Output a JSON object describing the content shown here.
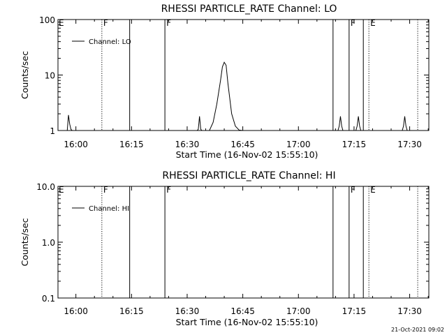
{
  "footer": {
    "timestamp": "21-Oct-2021 09:02"
  },
  "chart_data": [
    {
      "type": "line",
      "title": "RHESSI PARTICLE_RATE Channel: LO",
      "xlabel": "Start Time (16-Nov-02 15:55:10)",
      "ylabel": "Counts/sec",
      "yscale": "log",
      "ylim": [
        1,
        100
      ],
      "xlim": [
        "15:55:10",
        "17:35:10"
      ],
      "x_ticks": [
        "16:00",
        "16:15",
        "16:30",
        "16:45",
        "17:00",
        "17:15",
        "17:30"
      ],
      "y_ticks": [
        "1",
        "10",
        "100"
      ],
      "legend": {
        "position": "top-left",
        "entries": [
          "Channel: LO"
        ]
      },
      "series": [
        {
          "name": "Channel: LO",
          "x": [
            "15:55:10",
            "15:57:40",
            "15:58:00",
            "15:58:20",
            "15:58:40",
            "15:59:00",
            "15:59:20",
            "16:32:40",
            "16:33:00",
            "16:33:20",
            "16:33:40",
            "16:34:00",
            "16:36:00",
            "16:37:00",
            "16:38:00",
            "16:39:00",
            "16:39:30",
            "16:40:00",
            "16:40:30",
            "16:41:00",
            "16:42:00",
            "16:43:00",
            "16:44:00",
            "16:45:00",
            "17:10:40",
            "17:11:00",
            "17:11:20",
            "17:11:40",
            "17:12:00",
            "17:15:30",
            "17:15:50",
            "17:16:10",
            "17:16:30",
            "17:16:50",
            "17:28:00",
            "17:28:20",
            "17:28:40",
            "17:29:00",
            "17:29:20",
            "17:35:10"
          ],
          "y": [
            1,
            1,
            1.9,
            1.3,
            1.05,
            1,
            1,
            1,
            1.05,
            1.8,
            1.05,
            1,
            1,
            1.4,
            3,
            8,
            14,
            17,
            15,
            7,
            2,
            1.2,
            1.02,
            1,
            1,
            1.2,
            1.8,
            1.2,
            1,
            1,
            1.2,
            1.8,
            1.2,
            1,
            1,
            1.2,
            1.8,
            1.2,
            1,
            1
          ]
        }
      ],
      "annotations": [
        {
          "label": "E",
          "time": "15:55:10",
          "style": "none"
        },
        {
          "label": "F",
          "time": "16:07:00",
          "style": "dotted"
        },
        {
          "label": "",
          "time": "16:14:30",
          "style": "solid"
        },
        {
          "label": "F",
          "time": "16:24:00",
          "style": "solid"
        },
        {
          "label": "",
          "time": "17:09:20",
          "style": "solid"
        },
        {
          "label": "F",
          "time": "17:13:40",
          "style": "solid"
        },
        {
          "label": "E",
          "time": "17:19:00",
          "style": "dotted"
        },
        {
          "label": "",
          "time": "17:17:30",
          "style": "solid"
        },
        {
          "label": "",
          "time": "17:32:10",
          "style": "dotted"
        }
      ]
    },
    {
      "type": "line",
      "title": "RHESSI PARTICLE_RATE Channel: HI",
      "xlabel": "Start Time (16-Nov-02 15:55:10)",
      "ylabel": "Counts/sec",
      "yscale": "log",
      "ylim": [
        0.1,
        10
      ],
      "xlim": [
        "15:55:10",
        "17:35:10"
      ],
      "x_ticks": [
        "16:00",
        "16:15",
        "16:30",
        "16:45",
        "17:00",
        "17:15",
        "17:30"
      ],
      "y_ticks": [
        "0.1",
        "1.0",
        "10.0"
      ],
      "legend": {
        "position": "top-left",
        "entries": [
          "Channel: HI"
        ]
      },
      "series": [
        {
          "name": "Channel: HI",
          "x": [],
          "y": []
        }
      ],
      "annotations": [
        {
          "label": "E",
          "time": "15:55:10",
          "style": "none"
        },
        {
          "label": "F",
          "time": "16:07:00",
          "style": "dotted"
        },
        {
          "label": "",
          "time": "16:14:30",
          "style": "solid"
        },
        {
          "label": "F",
          "time": "16:24:00",
          "style": "solid"
        },
        {
          "label": "",
          "time": "17:09:20",
          "style": "solid"
        },
        {
          "label": "F",
          "time": "17:13:40",
          "style": "solid"
        },
        {
          "label": "E",
          "time": "17:19:00",
          "style": "dotted"
        },
        {
          "label": "",
          "time": "17:17:30",
          "style": "solid"
        },
        {
          "label": "",
          "time": "17:32:10",
          "style": "dotted"
        }
      ]
    }
  ]
}
